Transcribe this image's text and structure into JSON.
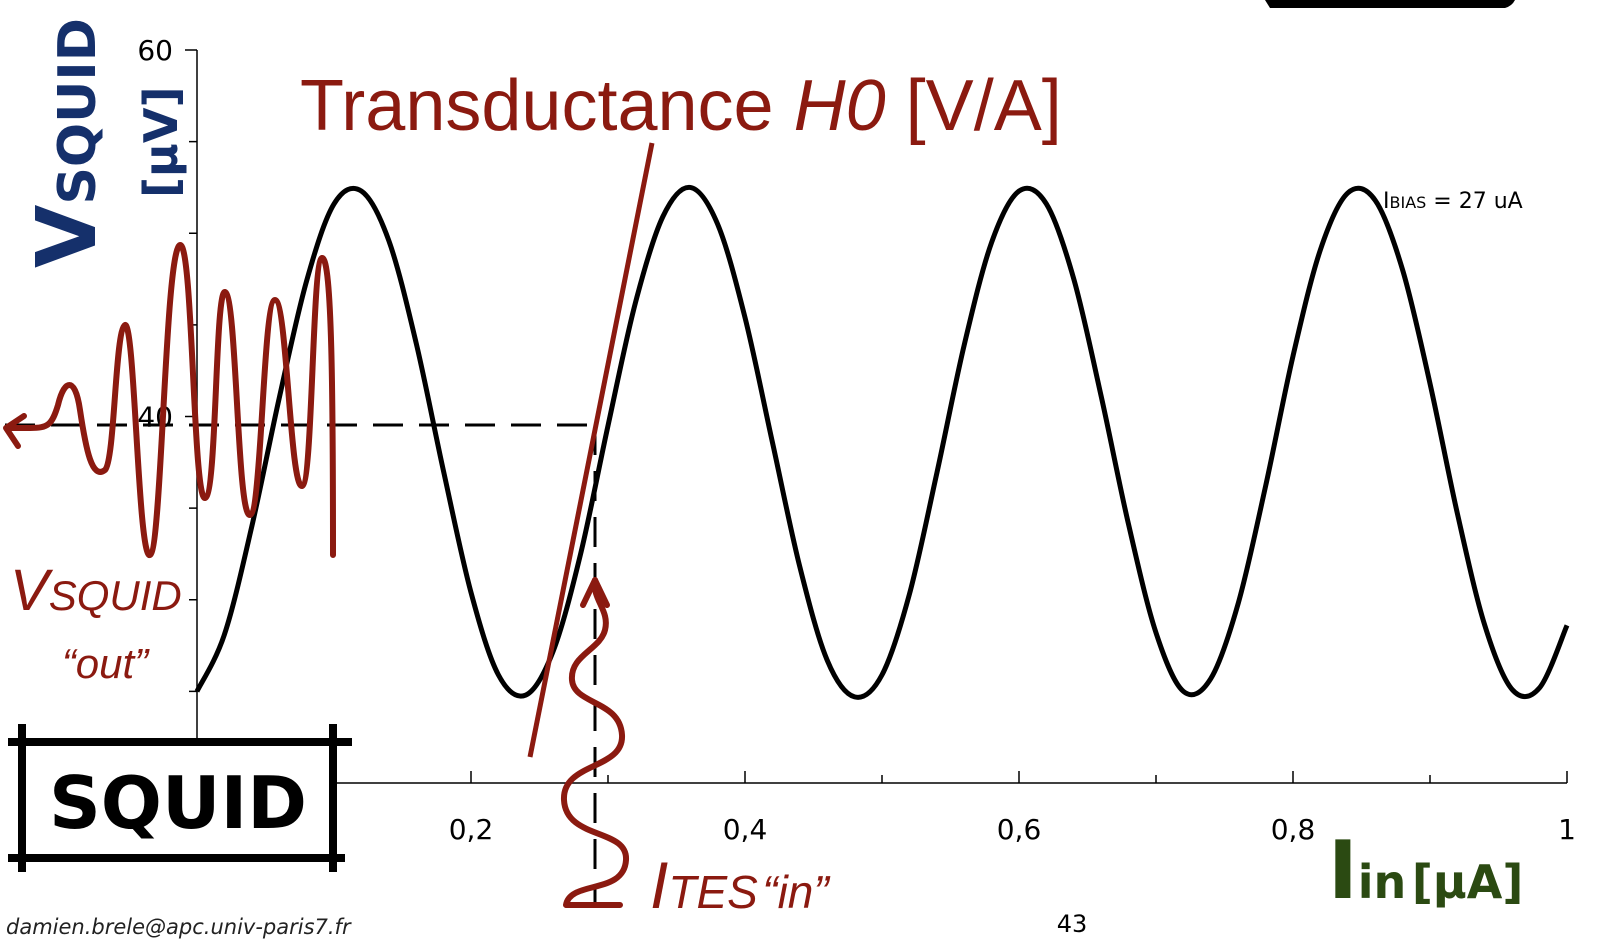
{
  "chart_data": {
    "type": "line",
    "title": "Transductance",
    "title_symbol": "H0",
    "title_unit": "[V/A]",
    "y_label_symbol": "V",
    "y_label_sub": "SQUID",
    "y_label_unit": "[µV]",
    "x_label_symbol": "I",
    "x_label_sub": "in",
    "x_label_unit": "[µA]",
    "annotation_symbol": "I",
    "annotation_sub": "BIAS",
    "annotation_text": "= 27 uA",
    "x": [
      0,
      0.02,
      0.04,
      0.06,
      0.08,
      0.1,
      0.12,
      0.14,
      0.16,
      0.18,
      0.2,
      0.22,
      0.24,
      0.26,
      0.28,
      0.3,
      0.32,
      0.34,
      0.36,
      0.38,
      0.4,
      0.42,
      0.44,
      0.46,
      0.48,
      0.5,
      0.52,
      0.54,
      0.56,
      0.58,
      0.6,
      0.62,
      0.64,
      0.66,
      0.68,
      0.7,
      0.72,
      0.74,
      0.76,
      0.78,
      0.8,
      0.82,
      0.84,
      0.86,
      0.88,
      0.9,
      0.92,
      0.94,
      0.96,
      0.98,
      1
    ],
    "series": [
      {
        "color": "#000000",
        "values": [
          25.0,
          28.1,
          34.0,
          41.0,
          47.4,
          51.6,
          52.3,
          49.6,
          44.0,
          37.0,
          30.4,
          25.9,
          24.8,
          27.2,
          32.5,
          39.5,
          46.2,
          50.9,
          52.5,
          50.5,
          45.4,
          38.6,
          31.8,
          26.7,
          24.7,
          25.9,
          30.3,
          36.9,
          43.9,
          49.5,
          52.3,
          51.6,
          47.5,
          41.1,
          34.1,
          28.2,
          25.0,
          25.7,
          29.8,
          36.2,
          43.3,
          49.1,
          52.2,
          51.8,
          48.0,
          41.8,
          34.7,
          28.6,
          25.1,
          25.2,
          28.6
        ]
      }
    ],
    "xlim": [
      0,
      1
    ],
    "xticks": [
      0,
      {
        "value": 0.2,
        "label": "0,2"
      },
      {
        "value": 0.4,
        "label": "0,4"
      },
      {
        "value": 0.6,
        "label": "0,6"
      },
      {
        "value": 0.8,
        "label": "0,8"
      },
      1
    ],
    "xminor": [
      0.1,
      0.3,
      0.5,
      0.7,
      0.9
    ],
    "ylim": [
      20,
      60
    ],
    "yticks": [
      20,
      40,
      60
    ],
    "yminor": [
      25,
      30,
      35,
      45,
      50,
      55
    ]
  },
  "slide": {
    "out_symbol": "V",
    "out_sub": "SQUID",
    "out_note": "“out”",
    "in_symbol": "I",
    "in_sub": "TES",
    "in_note": "“in”",
    "logo": "SQUID",
    "email": "damien.brele@apc.univ-paris7.fr",
    "page_number": "43"
  }
}
